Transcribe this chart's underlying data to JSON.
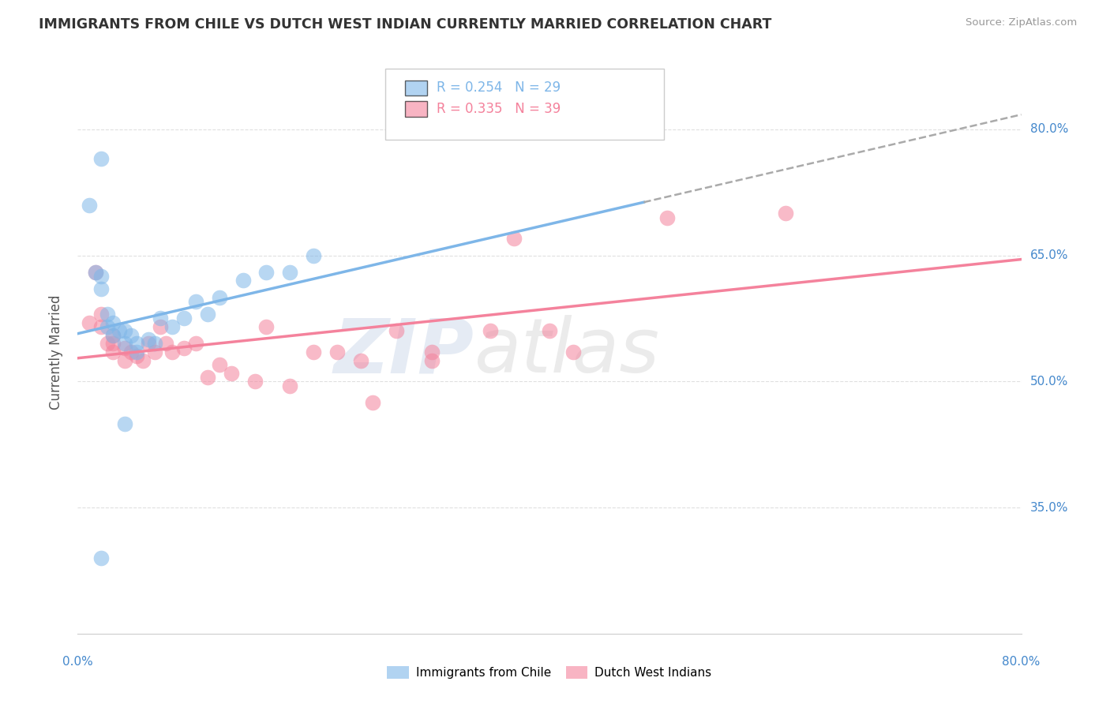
{
  "title": "IMMIGRANTS FROM CHILE VS DUTCH WEST INDIAN CURRENTLY MARRIED CORRELATION CHART",
  "source_text": "Source: ZipAtlas.com",
  "ylabel": "Currently Married",
  "xmin": 0.0,
  "xmax": 0.8,
  "ymin": 0.2,
  "ymax": 0.87,
  "yticks": [
    0.35,
    0.5,
    0.65,
    0.8
  ],
  "ytick_labels": [
    "35.0%",
    "50.0%",
    "65.0%",
    "80.0%"
  ],
  "xtick_labels_left": "0.0%",
  "xtick_labels_right": "80.0%",
  "chile_color": "#7EB6E8",
  "dutch_color": "#F4829C",
  "chile_R": 0.254,
  "chile_N": 29,
  "dutch_R": 0.335,
  "dutch_N": 39,
  "chile_scatter_x": [
    0.01,
    0.02,
    0.015,
    0.02,
    0.02,
    0.025,
    0.025,
    0.03,
    0.03,
    0.035,
    0.04,
    0.04,
    0.045,
    0.05,
    0.05,
    0.06,
    0.065,
    0.07,
    0.08,
    0.09,
    0.1,
    0.11,
    0.12,
    0.14,
    0.16,
    0.18,
    0.2,
    0.02,
    0.04
  ],
  "chile_scatter_y": [
    0.71,
    0.765,
    0.63,
    0.625,
    0.61,
    0.58,
    0.565,
    0.57,
    0.555,
    0.56,
    0.56,
    0.545,
    0.555,
    0.545,
    0.535,
    0.55,
    0.545,
    0.575,
    0.565,
    0.575,
    0.595,
    0.58,
    0.6,
    0.62,
    0.63,
    0.63,
    0.65,
    0.29,
    0.45
  ],
  "dutch_scatter_x": [
    0.01,
    0.015,
    0.02,
    0.02,
    0.025,
    0.03,
    0.03,
    0.03,
    0.04,
    0.04,
    0.045,
    0.05,
    0.055,
    0.06,
    0.065,
    0.07,
    0.075,
    0.08,
    0.09,
    0.1,
    0.11,
    0.12,
    0.13,
    0.15,
    0.16,
    0.18,
    0.2,
    0.22,
    0.24,
    0.25,
    0.27,
    0.3,
    0.3,
    0.35,
    0.37,
    0.4,
    0.42,
    0.5,
    0.6
  ],
  "dutch_scatter_y": [
    0.57,
    0.63,
    0.58,
    0.565,
    0.545,
    0.555,
    0.545,
    0.535,
    0.54,
    0.525,
    0.535,
    0.53,
    0.525,
    0.545,
    0.535,
    0.565,
    0.545,
    0.535,
    0.54,
    0.545,
    0.505,
    0.52,
    0.51,
    0.5,
    0.565,
    0.495,
    0.535,
    0.535,
    0.525,
    0.475,
    0.56,
    0.535,
    0.525,
    0.56,
    0.67,
    0.56,
    0.535,
    0.695,
    0.7
  ],
  "chile_line_solid_end": 0.48,
  "watermark_zip": "ZIP",
  "watermark_atlas": "atlas",
  "background_color": "#FFFFFF",
  "grid_color": "#E0E0E0"
}
